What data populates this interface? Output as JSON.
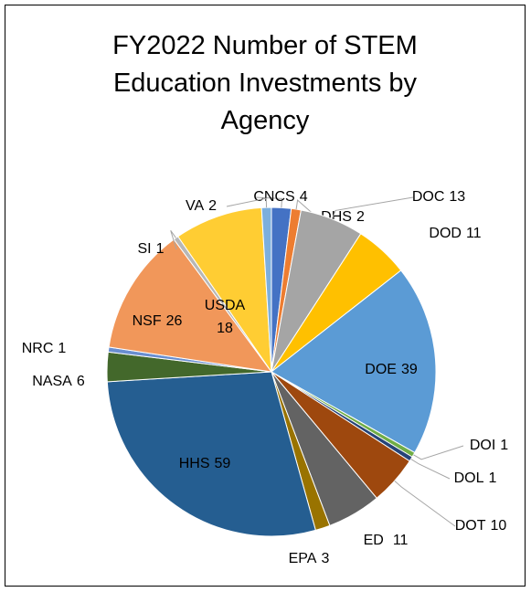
{
  "chart_data": {
    "type": "pie",
    "title": "FY2022 Number of STEM Education Investments by Agency",
    "categories": [
      "CNCS",
      "DHS",
      "DOC",
      "DOD",
      "DOE",
      "DOI",
      "DOL",
      "DOT",
      "ED",
      "EPA",
      "HHS",
      "NASA",
      "NRC",
      "NSF",
      "SI",
      "USDA",
      "VA"
    ],
    "values": [
      4,
      2,
      13,
      11,
      39,
      1,
      1,
      10,
      11,
      3,
      59,
      6,
      1,
      26,
      1,
      18,
      2
    ],
    "colors": [
      "#4472c4",
      "#ed7d31",
      "#a5a5a5",
      "#ffc000",
      "#5b9bd5",
      "#70ad47",
      "#264478",
      "#9e480e",
      "#636363",
      "#997300",
      "#255e91",
      "#43682b",
      "#698ed0",
      "#f1975a",
      "#b7b7b7",
      "#ffcd33",
      "#7cafdd"
    ]
  }
}
